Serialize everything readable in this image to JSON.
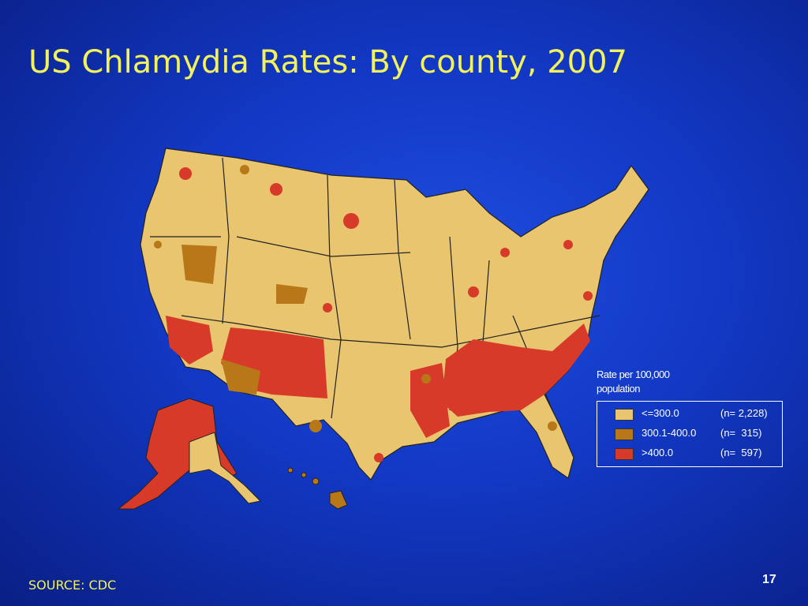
{
  "title": "US Chlamydia Rates: By county, 2007",
  "legend": {
    "title": [
      "Rate per 100,000",
      "population"
    ],
    "items": [
      {
        "label": "<=300.0",
        "count": "(n= 2,228)",
        "color": "#e8c56e"
      },
      {
        "label": "300.1-400.0",
        "count": "(n=  315)",
        "color": "#b87818"
      },
      {
        "label": ">400.0",
        "count": "(n=  597)",
        "color": "#d83a2a"
      }
    ]
  },
  "source": "SOURCE: CDC",
  "page_number": "17"
}
